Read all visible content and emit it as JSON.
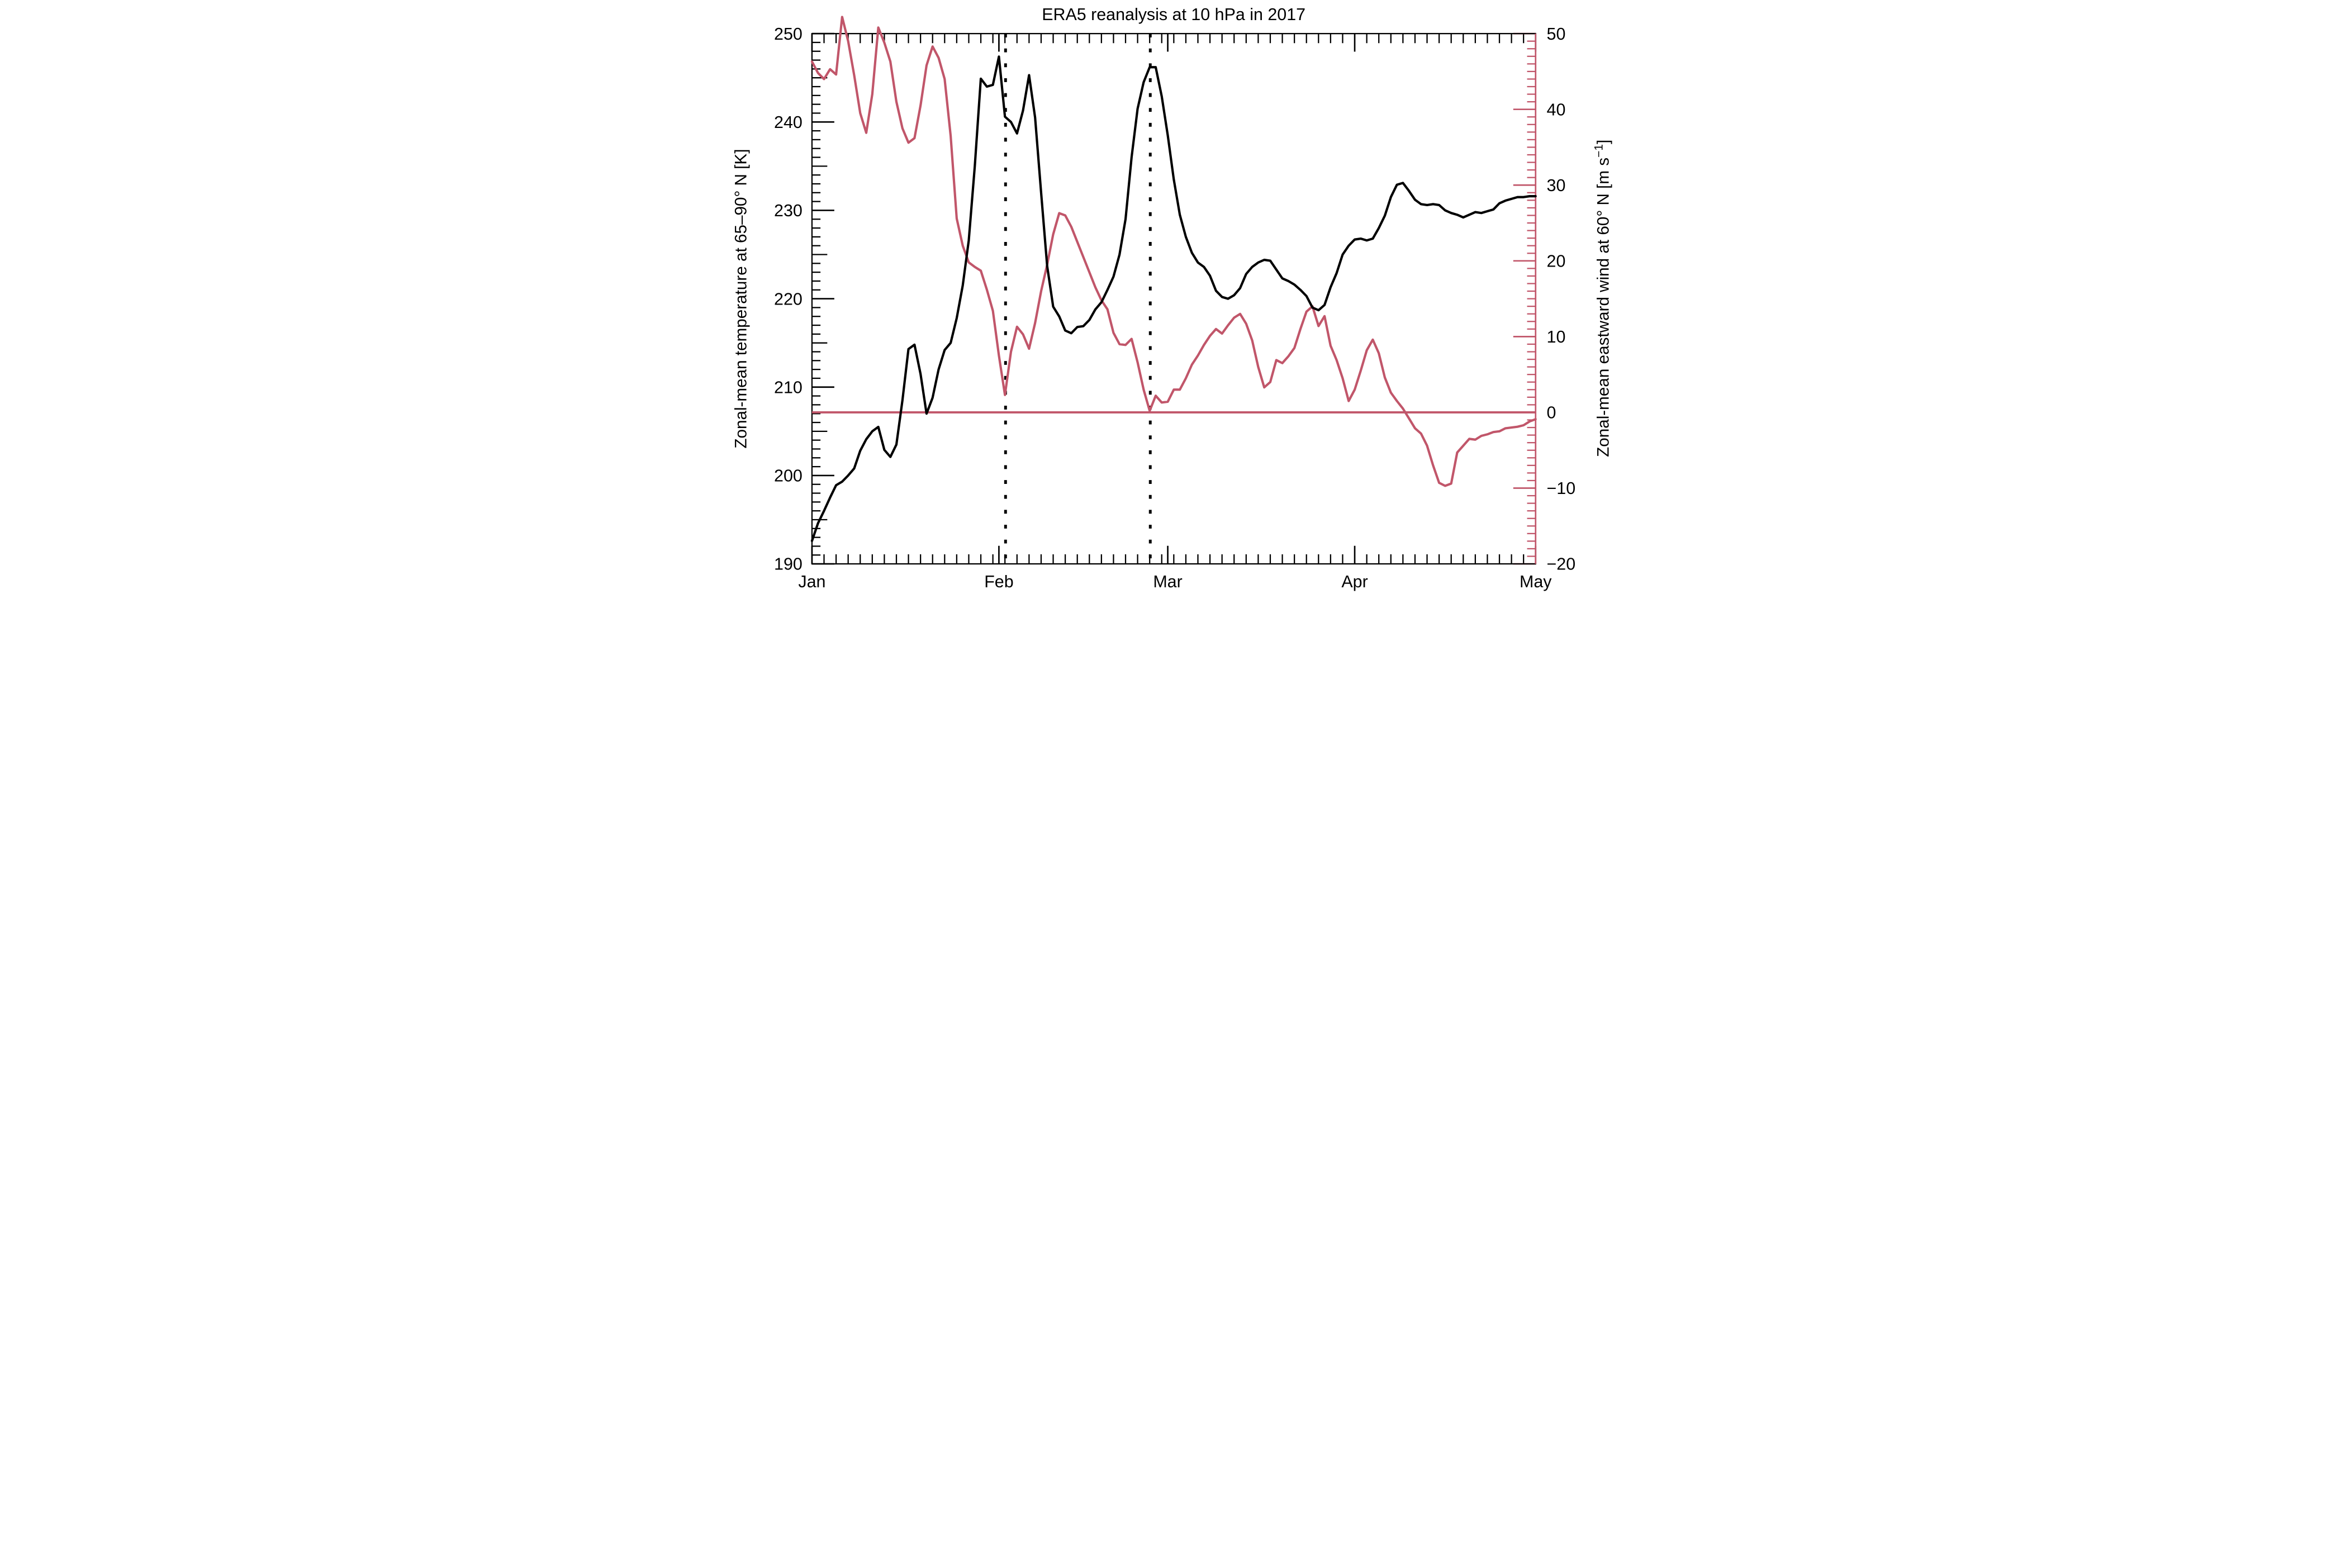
{
  "title": "ERA5 reanalysis at 10 hPa in 2017",
  "colors": {
    "temperature": "#000000",
    "wind": "#c1566a",
    "background": "#ffffff"
  },
  "left_axis": {
    "label": "Zonal-mean temperature at 65–90° N [K]",
    "min": 190,
    "max": 250,
    "major_step": 10,
    "mid_step": 5,
    "minor_step": 1,
    "tick_labels": [
      "250",
      "240",
      "230",
      "220",
      "210",
      "200",
      "190"
    ]
  },
  "right_axis": {
    "label_parts": [
      "Zonal-mean eastward wind at 60° N [m s",
      "−1",
      "]"
    ],
    "min": -20,
    "max": 50,
    "major_step": 10,
    "minor_step": 1,
    "tick_labels": [
      "50",
      "40",
      "30",
      "20",
      "10",
      "0",
      "−10",
      "−20"
    ]
  },
  "x_axis": {
    "major_days": [
      0,
      31,
      59,
      90,
      120
    ],
    "major_labels": [
      "Jan",
      "Feb",
      "Mar",
      "Apr",
      "May"
    ],
    "minor_step_days": 2,
    "total_days": 120
  },
  "event_lines_days": [
    32.1,
    56.1
  ],
  "zero_wind_line": 0,
  "chart_data": {
    "type": "line",
    "title": "ERA5 reanalysis at 10 hPa in 2017",
    "x_unit": "days since Jan 1, 2017 (daily values)",
    "x_range_days": [
      0,
      120
    ],
    "x_tick_labels": [
      "Jan",
      "Feb",
      "Mar",
      "Apr",
      "May"
    ],
    "legend_position": "none",
    "grid": false,
    "annotations": "two vertical dotted lines at days 32 and 56 (early-Feb and late-Feb events); horizontal red line at 0 m/s",
    "series": [
      {
        "name": "Zonal-mean temperature at 65–90° N [K]",
        "axis": "left",
        "ylim": [
          190,
          250
        ],
        "color": "#000000",
        "values": [
          192.6,
          194.6,
          196.0,
          197.5,
          198.9,
          199.3,
          200.0,
          200.8,
          202.8,
          204.1,
          205.0,
          205.5,
          202.9,
          202.1,
          203.5,
          208.5,
          214.3,
          214.8,
          211.5,
          207.0,
          208.8,
          212.0,
          214.2,
          215.0,
          217.8,
          221.5,
          226.6,
          235.0,
          244.9,
          244.0,
          244.2,
          247.4,
          240.6,
          240.0,
          238.7,
          241.3,
          245.3,
          240.5,
          232.0,
          223.7,
          219.1,
          218.0,
          216.4,
          216.1,
          216.8,
          216.9,
          217.6,
          218.8,
          219.6,
          221.0,
          222.5,
          225.0,
          229.0,
          236.0,
          241.5,
          244.5,
          246.2,
          246.2,
          242.9,
          238.5,
          233.5,
          229.5,
          227.0,
          225.2,
          224.1,
          223.6,
          222.6,
          220.9,
          220.2,
          220.0,
          220.4,
          221.2,
          222.8,
          223.6,
          224.1,
          224.4,
          224.3,
          223.3,
          222.3,
          222.0,
          221.6,
          221.0,
          220.3,
          219.0,
          218.7,
          219.3,
          221.3,
          222.9,
          225.0,
          226.0,
          226.7,
          226.8,
          226.6,
          226.8,
          228.0,
          229.4,
          231.5,
          232.9,
          233.1,
          232.2,
          231.2,
          230.7,
          230.6,
          230.7,
          230.6,
          230.0,
          229.7,
          229.5,
          229.2,
          229.5,
          229.8,
          229.7,
          229.9,
          230.1,
          230.8,
          231.1,
          231.3,
          231.5,
          231.5,
          231.6,
          231.6
        ]
      },
      {
        "name": "Zonal-mean eastward wind at 60° N [m s−1]",
        "axis": "right",
        "ylim": [
          -20,
          50
        ],
        "color": "#c1566a",
        "values": [
          46.3,
          44.8,
          44.0,
          45.3,
          44.6,
          52.2,
          49.0,
          44.5,
          39.5,
          36.9,
          42.0,
          50.8,
          48.8,
          46.3,
          41.0,
          37.5,
          35.6,
          36.2,
          40.5,
          45.8,
          48.3,
          46.8,
          44.0,
          36.5,
          25.6,
          22.0,
          19.8,
          19.2,
          18.7,
          16.2,
          13.4,
          7.5,
          2.3,
          8.0,
          11.3,
          10.3,
          8.4,
          11.8,
          16.0,
          19.5,
          23.5,
          26.3,
          26.0,
          24.5,
          22.5,
          20.5,
          18.5,
          16.5,
          14.8,
          13.6,
          10.5,
          9.0,
          8.9,
          9.7,
          6.6,
          3.0,
          0.2,
          2.2,
          1.3,
          1.4,
          3.0,
          3.0,
          4.5,
          6.3,
          7.5,
          8.9,
          10.1,
          11.0,
          10.4,
          11.5,
          12.5,
          13.0,
          11.7,
          9.5,
          6.0,
          3.3,
          4.0,
          6.9,
          6.5,
          7.4,
          8.5,
          11.0,
          13.3,
          14.0,
          11.4,
          12.7,
          8.8,
          6.9,
          4.5,
          1.5,
          3.0,
          5.5,
          8.2,
          9.6,
          7.8,
          4.6,
          2.6,
          1.5,
          0.5,
          -0.8,
          -2.1,
          -2.8,
          -4.4,
          -7.0,
          -9.3,
          -9.7,
          -9.4,
          -5.3,
          -4.4,
          -3.5,
          -3.6,
          -3.1,
          -2.9,
          -2.6,
          -2.5,
          -2.1,
          -2.0,
          -1.9,
          -1.7,
          -1.2,
          -0.9
        ]
      }
    ]
  }
}
